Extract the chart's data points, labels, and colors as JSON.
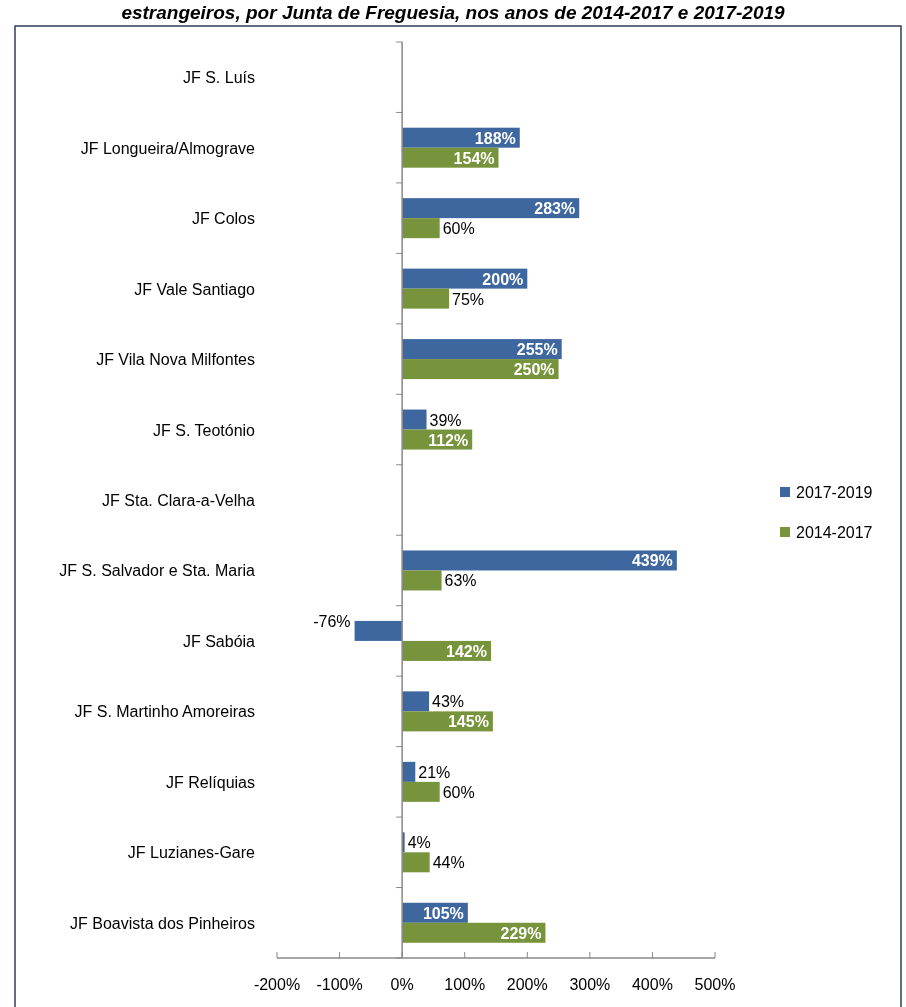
{
  "chart_data": {
    "type": "bar",
    "orientation": "horizontal",
    "title": "estrangeiros, por Junta de Freguesia, nos anos de 2014-2017 e 2017-2019",
    "categories": [
      "JF S. Luís",
      "JF Longueira/Almograve",
      "JF Colos",
      "JF Vale Santiago",
      "JF Vila Nova Milfontes",
      "JF S. Teotónio",
      "JF Sta. Clara-a-Velha",
      "JF S. Salvador e Sta. Maria",
      "JF Sabóia",
      "JF S. Martinho Amoreiras",
      "JF Relíquias",
      "JF Luzianes-Gare",
      "JF Boavista dos Pinheiros"
    ],
    "series": [
      {
        "name": "2017-2019",
        "color": "#3e67a0",
        "values": [
          null,
          188,
          283,
          200,
          255,
          39,
          null,
          439,
          -76,
          43,
          21,
          4,
          105
        ],
        "value_labels": [
          null,
          "188%",
          "283%",
          "200%",
          "255%",
          "39%",
          null,
          "439%",
          "-76%",
          "43%",
          "21%",
          "4%",
          "105%"
        ]
      },
      {
        "name": "2014-2017",
        "color": "#77933c",
        "values": [
          null,
          154,
          60,
          75,
          250,
          112,
          null,
          63,
          142,
          145,
          60,
          44,
          229
        ],
        "value_labels": [
          null,
          "154%",
          "60%",
          "75%",
          "250%",
          "112%",
          null,
          "63%",
          "142%",
          "145%",
          "60%",
          "44%",
          "229%"
        ]
      }
    ],
    "xlim": [
      -200,
      500
    ],
    "xticks": [
      {
        "value": -200,
        "label": "-200%"
      },
      {
        "value": -100,
        "label": "-100%"
      },
      {
        "value": 0,
        "label": "0%"
      },
      {
        "value": 100,
        "label": "100%"
      },
      {
        "value": 200,
        "label": "200%"
      },
      {
        "value": 300,
        "label": "300%"
      },
      {
        "value": 400,
        "label": "400%"
      },
      {
        "value": 500,
        "label": "500%"
      }
    ],
    "legend": "right"
  }
}
